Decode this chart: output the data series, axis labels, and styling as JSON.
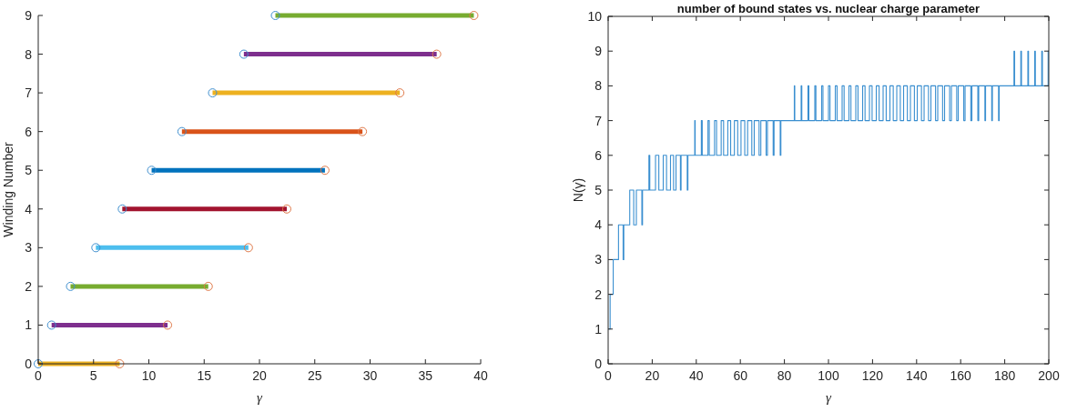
{
  "chart_data": [
    {
      "type": "line",
      "xlabel": "γ",
      "ylabel": "Winding Number",
      "xlim": [
        0,
        40
      ],
      "xticks": [
        0,
        5,
        10,
        15,
        20,
        25,
        30,
        35,
        40
      ],
      "ylim": [
        0,
        9
      ],
      "yticks": [
        0,
        1,
        2,
        3,
        4,
        5,
        6,
        7,
        8,
        9
      ],
      "series": [
        {
          "color": "#edb120",
          "x": [
            0,
            7.36
          ],
          "values": [
            0,
            0
          ]
        },
        {
          "color": "#7e2f8e",
          "x": [
            1.21,
            11.69
          ],
          "values": [
            1,
            1
          ]
        },
        {
          "color": "#77ac30",
          "x": [
            2.92,
            15.37
          ],
          "values": [
            2,
            2
          ]
        },
        {
          "color": "#4dbeee",
          "x": [
            5.21,
            19.0
          ],
          "values": [
            3,
            3
          ]
        },
        {
          "color": "#a2142f",
          "x": [
            7.6,
            22.47
          ],
          "values": [
            4,
            4
          ]
        },
        {
          "color": "#0072bd",
          "x": [
            10.25,
            25.92
          ],
          "values": [
            5,
            5
          ]
        },
        {
          "color": "#d95319",
          "x": [
            12.99,
            29.31
          ],
          "values": [
            6,
            6
          ]
        },
        {
          "color": "#edb120",
          "x": [
            15.76,
            32.69
          ],
          "values": [
            7,
            7
          ]
        },
        {
          "color": "#7e2f8e",
          "x": [
            18.59,
            36.02
          ],
          "values": [
            8,
            8
          ]
        },
        {
          "color": "#77ac30",
          "x": [
            21.44,
            39.38
          ],
          "values": [
            9,
            9
          ]
        },
        {
          "type": "scatter",
          "marker": "circle",
          "color": "#3f8fcf",
          "x": [
            0,
            1.21,
            2.92,
            5.21,
            7.6,
            10.25,
            12.99,
            15.76,
            18.59,
            21.44
          ],
          "values": [
            0,
            1,
            2,
            3,
            4,
            5,
            6,
            7,
            8,
            9
          ]
        },
        {
          "type": "scatter",
          "marker": "circle",
          "color": "#e07a4a",
          "x": [
            7.36,
            11.69,
            15.37,
            19.0,
            22.47,
            25.92,
            29.31,
            32.69,
            36.02,
            39.38
          ],
          "values": [
            0,
            1,
            2,
            3,
            4,
            5,
            6,
            7,
            8,
            9
          ]
        }
      ]
    },
    {
      "type": "step",
      "title": "number of bound states vs. nuclear charge parameter",
      "xlabel": "γ",
      "ylabel": "N(γ)",
      "xlim": [
        0,
        200
      ],
      "xticks": [
        0,
        20,
        40,
        60,
        80,
        100,
        120,
        140,
        160,
        180,
        200
      ],
      "ylim": [
        0,
        10
      ],
      "yticks": [
        0,
        1,
        2,
        3,
        4,
        5,
        6,
        7,
        8,
        9,
        10
      ],
      "series": [
        {
          "color": "#3a8fd0",
          "x": [
            0.2,
            0.9,
            2.3,
            4.7,
            6.8,
            7.1,
            9.8,
            11.6,
            12.8,
            15.3,
            15.6,
            18.5,
            18.9,
            21.5,
            23,
            25,
            26.5,
            28.3,
            29.7,
            30.8,
            32.8,
            33.1,
            35.9,
            36.2,
            39.3,
            39.5,
            42.3,
            42.7,
            45.3,
            45.9,
            48.3,
            49.2,
            51.3,
            52.4,
            54.3,
            55.6,
            57.3,
            58.8,
            60.3,
            62.0,
            63.3,
            65.2,
            66.3,
            68.5,
            69.3,
            71.7,
            72.3,
            74.9,
            75.3,
            78.1,
            78.4,
            84.5,
            84.7,
            87.6,
            87.9,
            90.7,
            91.1,
            93.8,
            94.3,
            96.9,
            97.5,
            100.0,
            100.7,
            103.1,
            103.9,
            106.2,
            107.1,
            109.3,
            110.2,
            112.4,
            113.4,
            115.5,
            116.6,
            118.6,
            119.8,
            121.7,
            123.0,
            124.8,
            126.2,
            127.9,
            129.4,
            131.0,
            132.6,
            134.1,
            135.8,
            137.2,
            139.0,
            140.3,
            142.2,
            143.4,
            145.4,
            146.5,
            148.6,
            149.6,
            151.8,
            152.7,
            155.0,
            155.8,
            158.2,
            158.9,
            161.4,
            162.0,
            164.6,
            165.1,
            167.8,
            168.2,
            171.0,
            171.3,
            174.1,
            174.4,
            177.2,
            177.5,
            184.2,
            184.5,
            187.3,
            187.6,
            190.5,
            190.8,
            193.6,
            193.9,
            196.8,
            197.1,
            199.7,
            200
          ],
          "values": [
            1,
            2,
            3,
            4,
            3,
            4,
            5,
            4,
            5,
            4,
            5,
            6,
            5,
            6,
            5,
            6,
            5,
            6,
            5,
            6,
            5,
            6,
            5,
            6,
            7,
            6,
            7,
            6,
            7,
            6,
            7,
            6,
            7,
            6,
            7,
            6,
            7,
            6,
            7,
            6,
            7,
            6,
            7,
            6,
            7,
            6,
            7,
            6,
            7,
            6,
            7,
            8,
            7,
            8,
            7,
            8,
            7,
            8,
            7,
            8,
            7,
            8,
            7,
            8,
            7,
            8,
            7,
            8,
            7,
            8,
            7,
            8,
            7,
            8,
            7,
            8,
            7,
            8,
            7,
            8,
            7,
            8,
            7,
            8,
            7,
            8,
            7,
            8,
            7,
            8,
            7,
            8,
            7,
            8,
            7,
            8,
            7,
            8,
            7,
            8,
            7,
            8,
            7,
            8,
            7,
            8,
            7,
            8,
            7,
            8,
            7,
            8,
            9,
            8,
            9,
            8,
            9,
            8,
            9,
            8,
            9,
            8,
            9,
            9
          ]
        }
      ]
    }
  ]
}
